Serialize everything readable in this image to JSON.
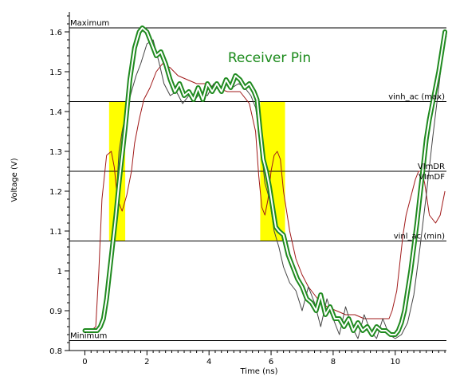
{
  "chart_data": {
    "type": "line",
    "title": "Receiver Pin",
    "xlabel": "Time (ns)",
    "ylabel": "Voltage (V)",
    "xlim": [
      -0.5,
      11.65
    ],
    "ylim": [
      0.8,
      1.65
    ],
    "x_ticks": [
      0,
      2,
      4,
      6,
      8,
      10
    ],
    "x_tick_labels": [
      "0",
      "2",
      "4",
      "6",
      "8",
      "10"
    ],
    "y_ticks": [
      0.8,
      0.9,
      1.0,
      1.1,
      1.2,
      1.3,
      1.4,
      1.5,
      1.6
    ],
    "y_tick_labels": [
      "0.8",
      "0.9",
      "1",
      "1.1",
      "1.2",
      "1.3",
      "1.4",
      "1.5",
      "1.6"
    ],
    "grid": false,
    "reference_lines": [
      {
        "label": "Maximum",
        "y": 1.61,
        "label_position": "left"
      },
      {
        "label": "vinh_ac (max)",
        "y": 1.425,
        "label_position": "right"
      },
      {
        "label": "VImDR",
        "y": 1.25,
        "label_position": "right"
      },
      {
        "label": "VImDF",
        "y": 1.25,
        "label_position": "right"
      },
      {
        "label": "vinl_ac (min)",
        "y": 1.075,
        "label_position": "right"
      },
      {
        "label": "Minimum",
        "y": 0.825,
        "label_position": "left"
      }
    ],
    "highlight_regions": [
      {
        "x0": 0.78,
        "x1": 1.3,
        "y0": 1.075,
        "y1": 1.425,
        "color": "#ffff00"
      },
      {
        "x0": 5.65,
        "x1": 6.45,
        "y0": 1.075,
        "y1": 1.425,
        "color": "#ffff00"
      }
    ],
    "series": [
      {
        "color": "#a01818",
        "style": "thin",
        "x": [
          0,
          0.2,
          0.35,
          0.45,
          0.55,
          0.7,
          0.85,
          0.95,
          1.05,
          1.2,
          1.35,
          1.5,
          1.6,
          1.75,
          1.9,
          2.1,
          2.3,
          2.5,
          2.75,
          3.0,
          3.3,
          3.6,
          3.9,
          4.2,
          4.6,
          5.0,
          5.3,
          5.5,
          5.6,
          5.7,
          5.8,
          5.9,
          6.0,
          6.1,
          6.2,
          6.3,
          6.4,
          6.6,
          6.8,
          7.0,
          7.2,
          7.5,
          7.8,
          8.1,
          8.4,
          8.7,
          9.0,
          9.3,
          9.6,
          9.8,
          9.9,
          10.05,
          10.15,
          10.25,
          10.35,
          10.45,
          10.55,
          10.65,
          10.75,
          10.85,
          10.95,
          11.1,
          11.3,
          11.45,
          11.6
        ],
        "y": [
          0.85,
          0.85,
          0.86,
          1.0,
          1.18,
          1.29,
          1.3,
          1.26,
          1.18,
          1.15,
          1.19,
          1.25,
          1.32,
          1.38,
          1.43,
          1.46,
          1.5,
          1.52,
          1.51,
          1.49,
          1.48,
          1.47,
          1.47,
          1.46,
          1.45,
          1.45,
          1.42,
          1.35,
          1.24,
          1.16,
          1.14,
          1.18,
          1.25,
          1.29,
          1.3,
          1.28,
          1.2,
          1.1,
          1.03,
          0.99,
          0.96,
          0.93,
          0.91,
          0.9,
          0.89,
          0.89,
          0.88,
          0.88,
          0.88,
          0.88,
          0.9,
          0.95,
          1.02,
          1.09,
          1.14,
          1.17,
          1.2,
          1.23,
          1.25,
          1.25,
          1.22,
          1.14,
          1.12,
          1.14,
          1.2
        ]
      },
      {
        "color": "#444444",
        "style": "thin",
        "x": [
          0,
          0.3,
          0.5,
          0.65,
          0.8,
          0.9,
          1.0,
          1.1,
          1.2,
          1.3,
          1.5,
          1.65,
          1.8,
          2.0,
          2.2,
          2.4,
          2.55,
          2.75,
          2.95,
          3.15,
          3.35,
          3.55,
          3.75,
          3.95,
          4.15,
          4.35,
          4.55,
          4.75,
          4.95,
          5.15,
          5.35,
          5.5,
          5.65,
          5.8,
          5.95,
          6.1,
          6.25,
          6.4,
          6.6,
          6.8,
          7.0,
          7.2,
          7.4,
          7.6,
          7.8,
          8.0,
          8.2,
          8.4,
          8.6,
          8.8,
          9.0,
          9.2,
          9.4,
          9.6,
          9.8,
          10.0,
          10.2,
          10.4,
          10.6,
          10.8,
          11.0,
          11.2,
          11.4,
          11.55,
          11.65
        ],
        "y": [
          0.85,
          0.85,
          0.86,
          0.9,
          1.01,
          1.08,
          1.17,
          1.3,
          1.35,
          1.39,
          1.45,
          1.49,
          1.52,
          1.57,
          1.58,
          1.52,
          1.47,
          1.44,
          1.45,
          1.42,
          1.44,
          1.43,
          1.45,
          1.44,
          1.47,
          1.45,
          1.47,
          1.46,
          1.47,
          1.46,
          1.44,
          1.41,
          1.33,
          1.22,
          1.18,
          1.1,
          1.06,
          1.01,
          0.97,
          0.95,
          0.9,
          0.96,
          0.92,
          0.86,
          0.93,
          0.88,
          0.84,
          0.91,
          0.86,
          0.83,
          0.89,
          0.85,
          0.83,
          0.88,
          0.84,
          0.83,
          0.84,
          0.87,
          0.94,
          1.06,
          1.19,
          1.33,
          1.46,
          1.56,
          1.59
        ]
      },
      {
        "color": "#1f8a1f",
        "style": "double",
        "x": [
          0,
          0.2,
          0.4,
          0.5,
          0.6,
          0.7,
          0.8,
          0.9,
          1.0,
          1.1,
          1.3,
          1.45,
          1.6,
          1.75,
          1.85,
          2.0,
          2.15,
          2.3,
          2.45,
          2.6,
          2.75,
          2.9,
          3.05,
          3.2,
          3.35,
          3.5,
          3.65,
          3.8,
          3.95,
          4.1,
          4.25,
          4.4,
          4.55,
          4.7,
          4.85,
          5.0,
          5.15,
          5.3,
          5.45,
          5.55,
          5.65,
          5.75,
          5.85,
          5.95,
          6.05,
          6.15,
          6.25,
          6.4,
          6.55,
          6.7,
          6.85,
          7.0,
          7.15,
          7.3,
          7.45,
          7.6,
          7.75,
          7.9,
          8.05,
          8.2,
          8.35,
          8.5,
          8.65,
          8.8,
          8.95,
          9.1,
          9.25,
          9.4,
          9.55,
          9.7,
          9.85,
          10.0,
          10.1,
          10.2,
          10.3,
          10.4,
          10.5,
          10.6,
          10.7,
          10.8,
          10.9,
          11.0,
          11.1,
          11.2,
          11.3,
          11.4,
          11.5,
          11.6
        ],
        "y": [
          0.85,
          0.85,
          0.85,
          0.86,
          0.88,
          0.93,
          1.0,
          1.07,
          1.14,
          1.22,
          1.36,
          1.48,
          1.56,
          1.6,
          1.61,
          1.6,
          1.57,
          1.54,
          1.55,
          1.52,
          1.48,
          1.45,
          1.47,
          1.44,
          1.45,
          1.43,
          1.46,
          1.43,
          1.47,
          1.45,
          1.47,
          1.45,
          1.48,
          1.46,
          1.49,
          1.48,
          1.46,
          1.47,
          1.45,
          1.43,
          1.35,
          1.28,
          1.25,
          1.21,
          1.16,
          1.11,
          1.1,
          1.09,
          1.04,
          1.01,
          0.98,
          0.96,
          0.93,
          0.92,
          0.9,
          0.94,
          0.89,
          0.91,
          0.88,
          0.88,
          0.86,
          0.88,
          0.85,
          0.87,
          0.85,
          0.86,
          0.84,
          0.86,
          0.85,
          0.85,
          0.84,
          0.84,
          0.85,
          0.87,
          0.9,
          0.95,
          1.0,
          1.06,
          1.12,
          1.19,
          1.26,
          1.33,
          1.38,
          1.42,
          1.46,
          1.5,
          1.55,
          1.6
        ]
      }
    ]
  }
}
